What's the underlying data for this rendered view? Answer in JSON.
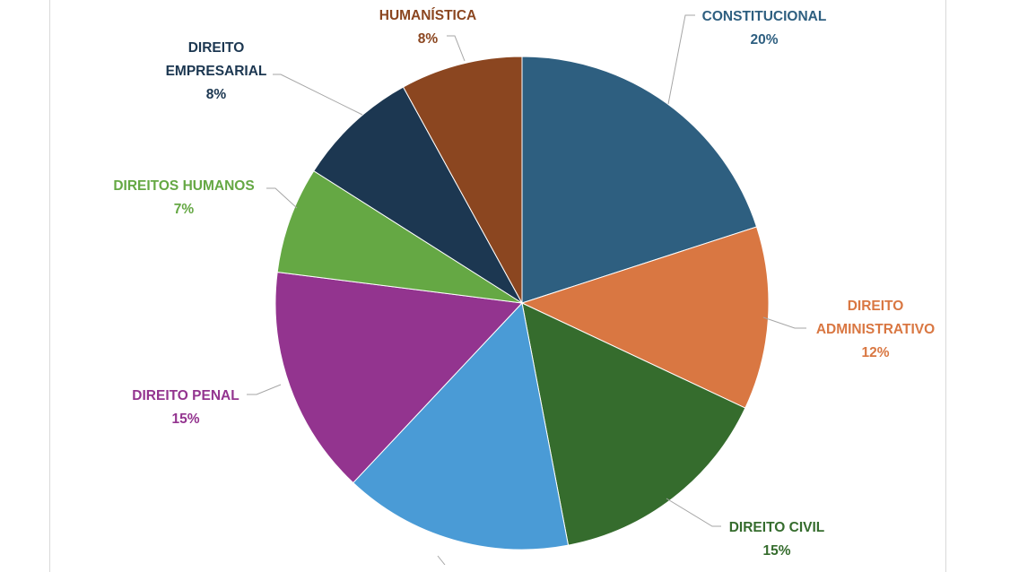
{
  "chart_data": {
    "type": "pie",
    "title": "",
    "slices": [
      {
        "label_lines": [
          "CONSTITUCIONAL"
        ],
        "pct_label": "20%",
        "value": 20,
        "color": "#2e5f80"
      },
      {
        "label_lines": [
          "DIREITO",
          "ADMINISTRATIVO"
        ],
        "pct_label": "12%",
        "value": 12,
        "color": "#d97742"
      },
      {
        "label_lines": [
          "DIREITO CIVIL"
        ],
        "pct_label": "15%",
        "value": 15,
        "color": "#356c2d"
      },
      {
        "label_lines": [
          ""
        ],
        "pct_label": "",
        "value": 15,
        "color": "#4a9bd6"
      },
      {
        "label_lines": [
          "DIREITO PENAL"
        ],
        "pct_label": "15%",
        "value": 15,
        "color": "#93348f"
      },
      {
        "label_lines": [
          "DIREITOS HUMANOS"
        ],
        "pct_label": "7%",
        "value": 7,
        "color": "#65a844"
      },
      {
        "label_lines": [
          "DIREITO",
          "EMPRESARIAL"
        ],
        "pct_label": "8%",
        "value": 8,
        "color": "#1c3751"
      },
      {
        "label_lines": [
          "HUMANÍSTICA"
        ],
        "pct_label": "8%",
        "value": 8,
        "color": "#8b4620"
      }
    ],
    "legend": "none",
    "data_labels": "outside-with-leader-lines"
  }
}
